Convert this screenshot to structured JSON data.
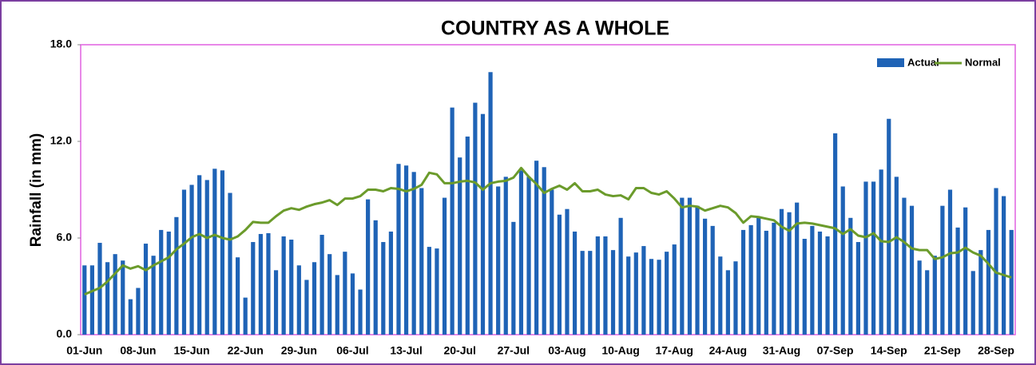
{
  "chart_data": {
    "type": "bar",
    "title": "COUNTRY AS A WHOLE",
    "y_label": "Rainfall (in mm)",
    "categories": [
      "01-Jun",
      null,
      null,
      null,
      null,
      null,
      null,
      "08-Jun",
      null,
      null,
      null,
      null,
      null,
      null,
      "15-Jun",
      null,
      null,
      null,
      null,
      null,
      null,
      "22-Jun",
      null,
      null,
      null,
      null,
      null,
      null,
      "29-Jun",
      null,
      null,
      null,
      null,
      null,
      null,
      "06-Jul",
      null,
      null,
      null,
      null,
      null,
      null,
      "13-Jul",
      null,
      null,
      null,
      null,
      null,
      null,
      "20-Jul",
      null,
      null,
      null,
      null,
      null,
      null,
      "27-Jul",
      null,
      null,
      null,
      null,
      null,
      null,
      "03-Aug",
      null,
      null,
      null,
      null,
      null,
      null,
      "10-Aug",
      null,
      null,
      null,
      null,
      null,
      null,
      "17-Aug",
      null,
      null,
      null,
      null,
      null,
      null,
      "24-Aug",
      null,
      null,
      null,
      null,
      null,
      null,
      "31-Aug",
      null,
      null,
      null,
      null,
      null,
      null,
      "07-Sep",
      null,
      null,
      null,
      null,
      null,
      null,
      "14-Sep",
      null,
      null,
      null,
      null,
      null,
      null,
      "21-Sep",
      null,
      null,
      null,
      null,
      null,
      null,
      "28-Sep",
      null,
      null
    ],
    "series": [
      {
        "name": "Actual",
        "type": "bar",
        "color": "#1f63b6",
        "values": [
          4.3,
          4.3,
          5.7,
          4.5,
          5.0,
          4.6,
          2.2,
          2.9,
          5.65,
          4.9,
          6.5,
          6.4,
          7.3,
          9.0,
          9.3,
          9.9,
          9.6,
          10.3,
          10.2,
          8.8,
          4.8,
          2.3,
          5.75,
          6.25,
          6.3,
          4.0,
          6.1,
          5.9,
          4.3,
          3.4,
          4.5,
          6.2,
          5.0,
          3.7,
          5.15,
          3.8,
          2.8,
          8.4,
          7.1,
          5.75,
          6.4,
          10.6,
          10.5,
          10.1,
          9.1,
          5.45,
          5.35,
          8.5,
          14.1,
          11.0,
          12.3,
          14.4,
          13.7,
          16.3,
          9.2,
          9.8,
          7.0,
          10.2,
          9.8,
          10.8,
          10.4,
          9.0,
          7.45,
          7.8,
          6.4,
          5.2,
          5.2,
          6.1,
          6.1,
          5.25,
          7.25,
          4.85,
          5.1,
          5.5,
          4.7,
          4.65,
          5.15,
          5.6,
          8.5,
          8.5,
          8.0,
          7.2,
          6.75,
          4.85,
          4.0,
          4.55,
          6.5,
          6.8,
          7.25,
          6.45,
          6.95,
          7.8,
          7.6,
          8.2,
          5.95,
          6.75,
          6.4,
          6.1,
          12.5,
          9.2,
          7.25,
          5.75,
          9.5,
          9.5,
          10.25,
          13.4,
          9.8,
          8.5,
          8.0,
          4.6,
          4.0,
          4.9,
          8.0,
          9.0,
          6.65,
          7.9,
          3.95,
          5.25,
          6.5,
          9.1,
          8.6,
          6.5
        ]
      },
      {
        "name": "Normal",
        "type": "line",
        "color": "#6b9b2b",
        "values": [
          2.5,
          2.7,
          2.9,
          3.3,
          3.8,
          4.3,
          4.1,
          4.25,
          4.0,
          4.3,
          4.55,
          4.8,
          5.3,
          5.65,
          6.05,
          6.25,
          6.0,
          6.2,
          6.0,
          5.9,
          6.1,
          6.5,
          7.0,
          6.95,
          6.95,
          7.35,
          7.7,
          7.85,
          7.75,
          7.95,
          8.1,
          8.2,
          8.35,
          8.05,
          8.45,
          8.45,
          8.6,
          9.0,
          9.0,
          8.9,
          9.1,
          9.05,
          8.9,
          9.05,
          9.3,
          10.05,
          9.95,
          9.4,
          9.4,
          9.5,
          9.55,
          9.45,
          9.0,
          9.4,
          9.5,
          9.55,
          9.75,
          10.35,
          9.8,
          9.35,
          8.8,
          9.05,
          9.25,
          9.0,
          9.4,
          8.9,
          8.9,
          9.0,
          8.7,
          8.6,
          8.65,
          8.4,
          9.1,
          9.1,
          8.8,
          8.7,
          8.9,
          8.45,
          7.9,
          8.0,
          7.95,
          7.7,
          7.85,
          8.0,
          7.9,
          7.55,
          6.95,
          7.35,
          7.3,
          7.2,
          7.1,
          6.7,
          6.45,
          6.9,
          6.95,
          6.9,
          6.8,
          6.7,
          6.6,
          6.25,
          6.55,
          6.15,
          6.05,
          6.3,
          5.8,
          5.75,
          6.05,
          5.75,
          5.35,
          5.25,
          5.25,
          4.7,
          4.8,
          5.05,
          5.1,
          5.4,
          5.1,
          4.9,
          4.4,
          3.85,
          3.7,
          3.55
        ]
      }
    ],
    "ylim": [
      0,
      18
    ],
    "yticks": [
      {
        "value": 0,
        "label": "0.0"
      },
      {
        "value": 6,
        "label": "6.0"
      },
      {
        "value": 12,
        "label": "12.0"
      },
      {
        "value": 18,
        "label": "18.0"
      }
    ],
    "legend": "top-right"
  }
}
